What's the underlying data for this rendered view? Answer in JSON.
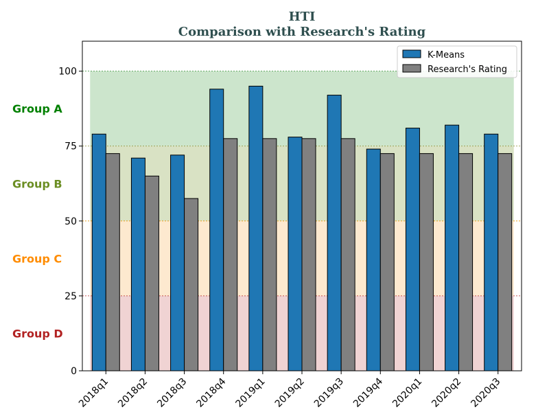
{
  "chart_data": {
    "type": "bar",
    "title": "HTI",
    "subtitle": "Comparison with Research's Rating",
    "categories": [
      "2018q1",
      "2018q2",
      "2018q3",
      "2018q4",
      "2019q1",
      "2019q2",
      "2019q3",
      "2019q4",
      "2020q1",
      "2020q2",
      "2020q3"
    ],
    "series": [
      {
        "name": "K-Means",
        "color": "#1f77b4",
        "values": [
          79,
          71,
          72,
          94,
          95,
          78,
          92,
          74,
          81,
          82,
          79
        ]
      },
      {
        "name": "Research's Rating",
        "color": "#808080",
        "values": [
          72.5,
          65,
          57.5,
          77.5,
          77.5,
          77.5,
          77.5,
          72.5,
          72.5,
          72.5,
          72.5
        ]
      }
    ],
    "ylim": [
      0,
      110
    ],
    "yticks": [
      0,
      25,
      50,
      75,
      100
    ],
    "xlabel": "",
    "ylabel": "",
    "legend_position": "top-right",
    "bands": [
      {
        "label": "Group A",
        "from": 75,
        "to": 100,
        "fill": "#cce5cc",
        "line": "#2e8b2e",
        "label_color": "#008000"
      },
      {
        "label": "Group B",
        "from": 50,
        "to": 75,
        "fill": "#d9e2c4",
        "line": "#8b8b2e",
        "label_color": "#6b8e23"
      },
      {
        "label": "Group C",
        "from": 25,
        "to": 50,
        "fill": "#fde9cf",
        "line": "#e69500",
        "label_color": "#ff8c00"
      },
      {
        "label": "Group D",
        "from": 0,
        "to": 25,
        "fill": "#f0d3d3",
        "line": "#b22222",
        "label_color": "#b22222"
      }
    ]
  }
}
